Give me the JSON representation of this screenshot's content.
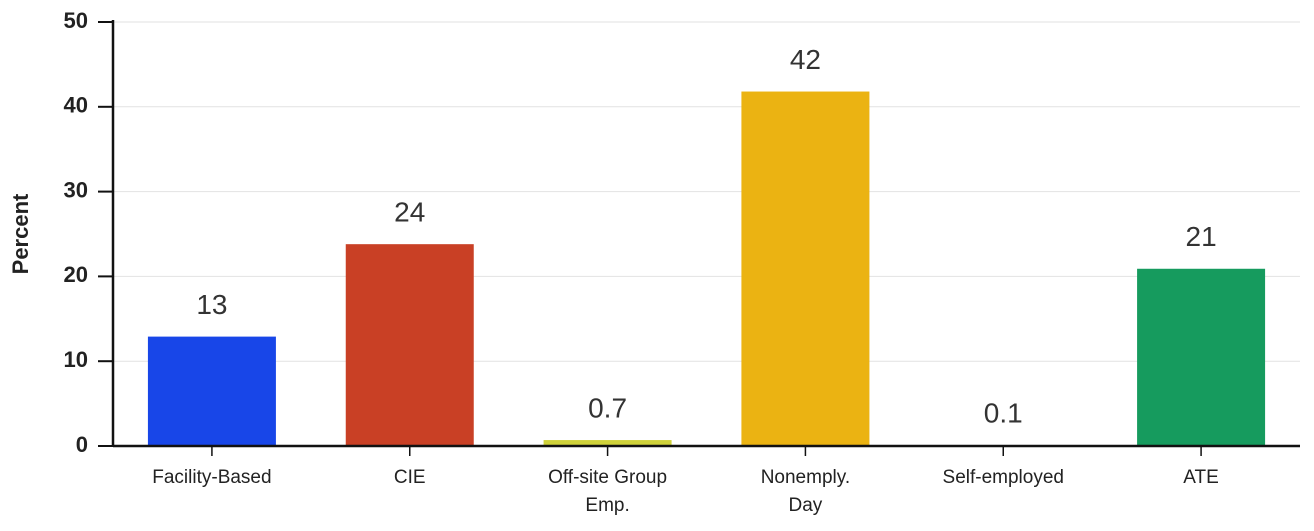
{
  "chart_data": {
    "type": "bar",
    "y_label": "Percent",
    "categories": [
      "Facility-Based",
      "CIE",
      "Off-site Group Emp.",
      "Nonemply. Day",
      "Self-employed",
      "ATE"
    ],
    "values": [
      12.9,
      23.8,
      0.7,
      41.8,
      0.1,
      20.9
    ],
    "value_labels": [
      "13",
      "24",
      "0.7",
      "42",
      "0.1",
      "21"
    ],
    "colors": [
      "#1846e8",
      "#c94025",
      "#cfd23a",
      "#ebb312",
      "#9a9a9a",
      "#169b5e"
    ],
    "ylim": [
      0,
      50
    ],
    "yticks": [
      0,
      10,
      20,
      30,
      40,
      50
    ],
    "grid": true
  }
}
